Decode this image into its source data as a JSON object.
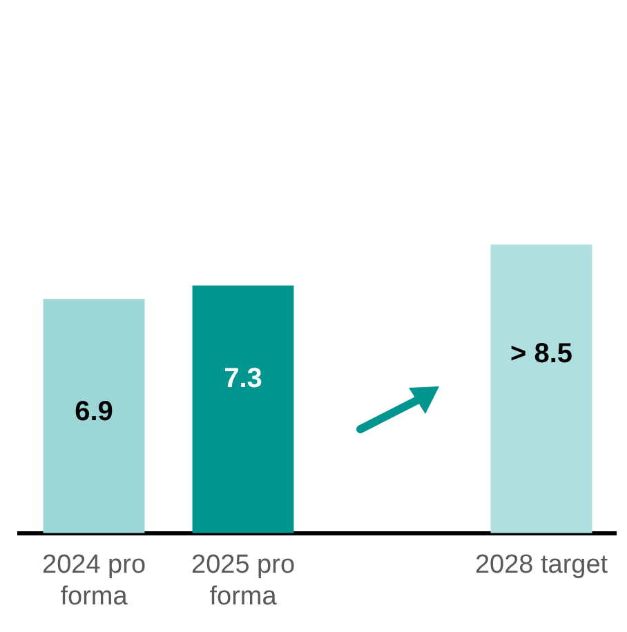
{
  "chart_data": {
    "type": "bar",
    "categories": [
      "2024 pro forma",
      "2025 pro forma",
      null,
      "2028 target"
    ],
    "values": [
      6.9,
      7.3,
      null,
      8.5
    ],
    "colors": [
      "#9dd6d6",
      "#00958f",
      null,
      "#b0dfdf"
    ],
    "value_labels": [
      "6.9",
      "7.3",
      null,
      "> 8.5"
    ],
    "tick_labels": "x",
    "grid": false,
    "legend": false
  }
}
